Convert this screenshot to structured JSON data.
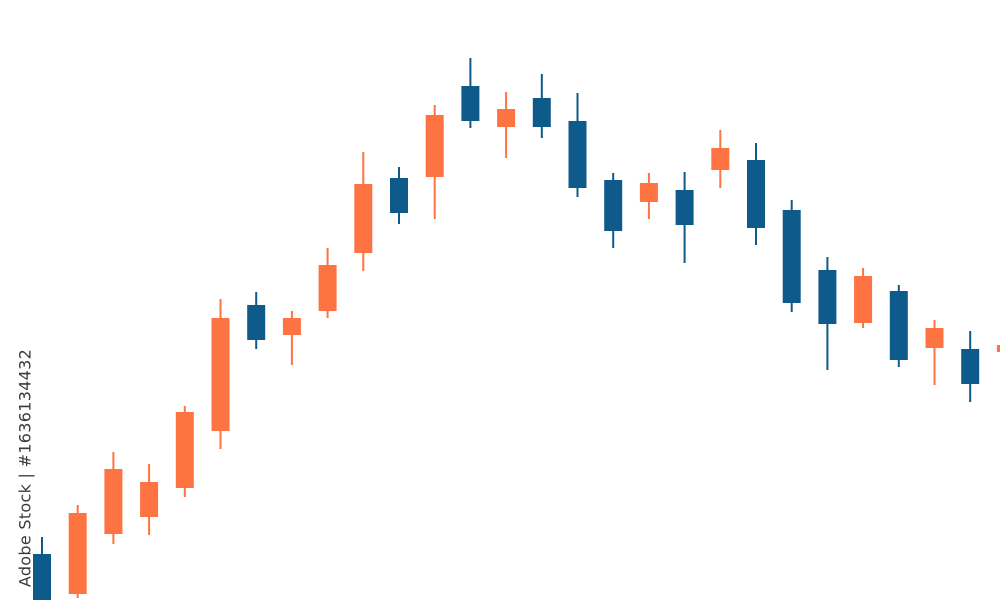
{
  "credit": "Adobe Stock | #1636134432",
  "watermark": "Adobe Stock",
  "chart_data": {
    "type": "candlestick",
    "title": "",
    "xlabel": "",
    "ylabel": "",
    "ylim": [
      0,
      600
    ],
    "grid": false,
    "legend": "none",
    "colors": {
      "up": "#fd7341",
      "down": "#0e5a8a"
    },
    "candles": [
      {
        "open": 46,
        "high": 63,
        "low": 0,
        "close": 0
      },
      {
        "open": 6,
        "high": 95,
        "low": 2,
        "close": 87
      },
      {
        "open": 66,
        "high": 148,
        "low": 56,
        "close": 131
      },
      {
        "open": 83,
        "high": 136,
        "low": 65,
        "close": 118
      },
      {
        "open": 112,
        "high": 194,
        "low": 103,
        "close": 188
      },
      {
        "open": 169,
        "high": 301,
        "low": 151,
        "close": 282
      },
      {
        "open": 295,
        "high": 308,
        "low": 251,
        "close": 260
      },
      {
        "open": 265,
        "high": 289,
        "low": 235,
        "close": 282
      },
      {
        "open": 289,
        "high": 352,
        "low": 282,
        "close": 335
      },
      {
        "open": 347,
        "high": 448,
        "low": 329,
        "close": 416
      },
      {
        "open": 422,
        "high": 433,
        "low": 376,
        "close": 387
      },
      {
        "open": 423,
        "high": 495,
        "low": 381,
        "close": 485
      },
      {
        "open": 514,
        "high": 542,
        "low": 472,
        "close": 479
      },
      {
        "open": 473,
        "high": 508,
        "low": 442,
        "close": 491
      },
      {
        "open": 502,
        "high": 526,
        "low": 462,
        "close": 473
      },
      {
        "open": 479,
        "high": 507,
        "low": 403,
        "close": 412
      },
      {
        "open": 420,
        "high": 427,
        "low": 352,
        "close": 369
      },
      {
        "open": 398,
        "high": 427,
        "low": 381,
        "close": 417
      },
      {
        "open": 410,
        "high": 428,
        "low": 337,
        "close": 375
      },
      {
        "open": 430,
        "high": 470,
        "low": 412,
        "close": 452
      },
      {
        "open": 440,
        "high": 457,
        "low": 355,
        "close": 372
      },
      {
        "open": 390,
        "high": 400,
        "low": 288,
        "close": 297
      },
      {
        "open": 330,
        "high": 343,
        "low": 230,
        "close": 276
      },
      {
        "open": 277,
        "high": 332,
        "low": 272,
        "close": 324
      },
      {
        "open": 309,
        "high": 315,
        "low": 233,
        "close": 240
      },
      {
        "open": 252,
        "high": 280,
        "low": 215,
        "close": 272
      },
      {
        "open": 251,
        "high": 269,
        "low": 198,
        "close": 216
      },
      {
        "open": 248,
        "high": 258,
        "low": 245,
        "close": 255
      }
    ]
  }
}
